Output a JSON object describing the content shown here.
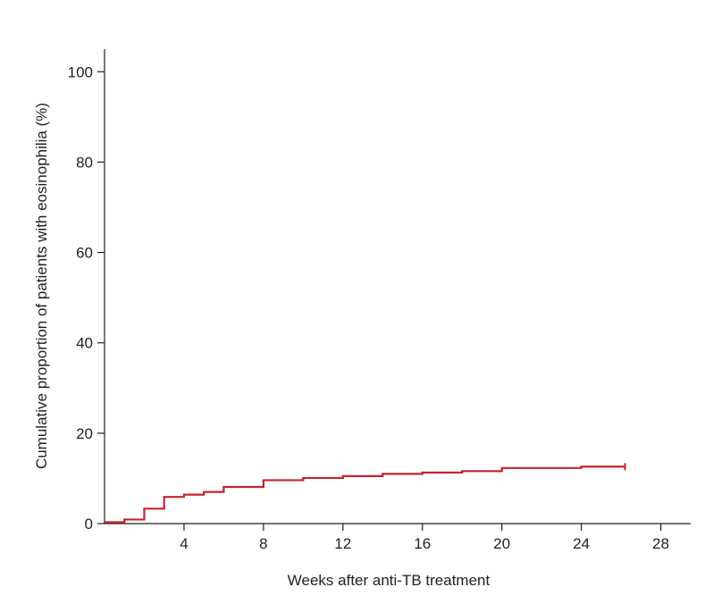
{
  "chart_data": {
    "type": "line",
    "subtype": "step",
    "xlabel": "Weeks after anti-TB treatment",
    "ylabel": "Cumulative proportion of patients with eosinophilia (%)",
    "xlim": [
      0,
      29.5
    ],
    "ylim": [
      0,
      105
    ],
    "x_ticks": [
      4,
      8,
      12,
      16,
      20,
      24,
      28
    ],
    "y_ticks": [
      0,
      20,
      40,
      60,
      80,
      100
    ],
    "grid": false,
    "legend": "none",
    "line_color": "#c1272d",
    "series": [
      {
        "x": [
          0,
          1,
          2,
          3,
          4,
          5,
          6,
          8,
          10,
          12,
          14,
          16,
          18,
          20,
          24,
          26.2
        ],
        "y": [
          0.3,
          0.9,
          3.3,
          5.9,
          6.4,
          7.0,
          8.1,
          9.6,
          10.1,
          10.5,
          11.0,
          11.3,
          11.6,
          12.3,
          12.6,
          12.6
        ]
      }
    ],
    "censor_marks": [
      26.2
    ]
  }
}
